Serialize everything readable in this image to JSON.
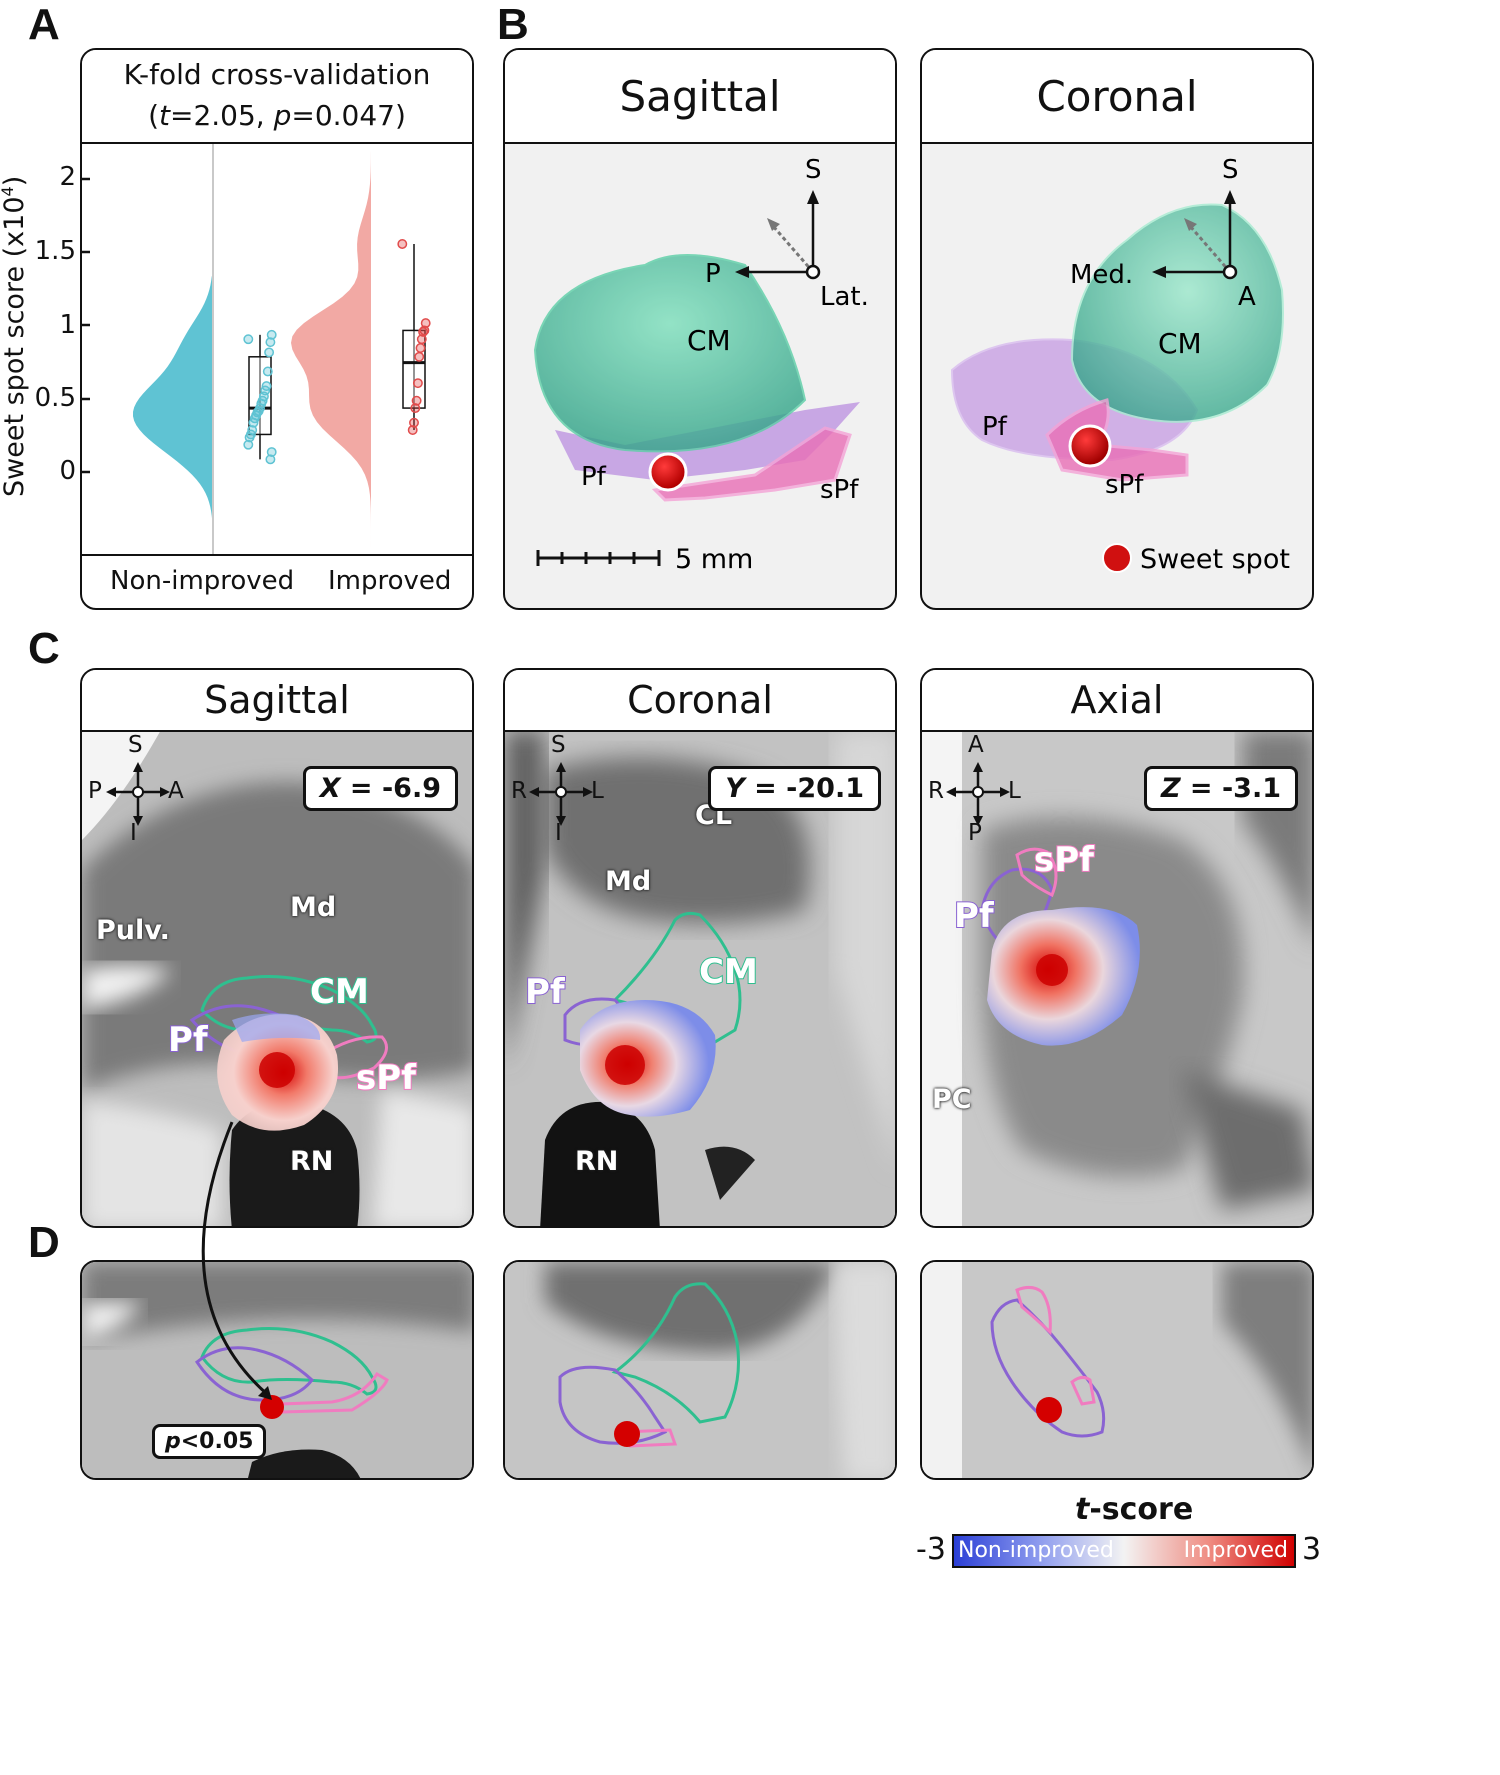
{
  "panels": {
    "A": "A",
    "B": "B",
    "C": "C",
    "D": "D"
  },
  "panelA": {
    "title": "K-fold cross-validation",
    "stats": {
      "open": "(",
      "t_sym": "t",
      "t_val": "=2.05, ",
      "p_sym": "p",
      "p_val": "=0.047)"
    },
    "ylabel": "Sweet spot score (x10",
    "ylabel_sup": "4",
    "ylabel_close": ")",
    "yticks": [
      "2",
      "1.5",
      "1",
      "0.5",
      "0"
    ],
    "categories": [
      "Non-improved",
      "Improved"
    ]
  },
  "chart_data": {
    "type": "box",
    "title": "K-fold cross-validation",
    "subtitle": "(t=2.05, p=0.047)",
    "ylabel": "Sweet spot score (x10^4)",
    "ylim": [
      -0.5,
      2.2
    ],
    "categories": [
      "Non-improved",
      "Improved"
    ],
    "series": [
      {
        "name": "Non-improved",
        "color": "#5fc3d3",
        "box": {
          "q1": 0.27,
          "median": 0.45,
          "q3": 0.8,
          "whisker_low": 0.1,
          "whisker_high": 0.95
        },
        "points": [
          0.92,
          0.95,
          0.9,
          0.83,
          0.7,
          0.6,
          0.57,
          0.53,
          0.5,
          0.48,
          0.45,
          0.43,
          0.42,
          0.4,
          0.38,
          0.35,
          0.3,
          0.27,
          0.25,
          0.2,
          0.15,
          0.1
        ]
      },
      {
        "name": "Improved",
        "color": "#e14b4b",
        "box": {
          "q1": 0.45,
          "median": 0.76,
          "q3": 0.98,
          "whisker_low": 0.3,
          "whisker_high": 1.57
        },
        "points": [
          1.57,
          1.03,
          0.98,
          0.97,
          0.92,
          0.86,
          0.8,
          0.62,
          0.5,
          0.45,
          0.35,
          0.3
        ]
      }
    ]
  },
  "panelB": {
    "sagittal": {
      "title": "Sagittal",
      "labels": {
        "cm": "CM",
        "pf": "Pf",
        "spf": "sPf"
      },
      "axes": {
        "s": "S",
        "p": "P",
        "lat": "Lat."
      },
      "scale": "5 mm"
    },
    "coronal": {
      "title": "Coronal",
      "labels": {
        "cm": "CM",
        "pf": "Pf",
        "spf": "sPf"
      },
      "axes": {
        "s": "S",
        "med": "Med.",
        "a": "A"
      },
      "legend": "Sweet spot"
    }
  },
  "panelC": {
    "sagittal": {
      "title": "Sagittal",
      "coord_var": "X",
      "coord_val": " = -6.9",
      "dirs": {
        "s": "S",
        "i": "I",
        "p": "P",
        "a": "A"
      },
      "labels": {
        "pulv": "Pulv.",
        "md": "Md",
        "cm": "CM",
        "pf": "Pf",
        "spf": "sPf",
        "rn": "RN"
      }
    },
    "coronal": {
      "title": "Coronal",
      "coord_var": "Y",
      "coord_val": " = -20.1",
      "dirs": {
        "s": "S",
        "i": "I",
        "r": "R",
        "l": "L"
      },
      "labels": {
        "cl": "CL",
        "md": "Md",
        "cm": "CM",
        "pf": "Pf",
        "rn": "RN"
      }
    },
    "axial": {
      "title": "Axial",
      "coord_var": "Z",
      "coord_val": " = -3.1",
      "dirs": {
        "a": "A",
        "p": "P",
        "r": "R",
        "l": "L"
      },
      "labels": {
        "spf": "sPf",
        "pf": "Pf",
        "pc": "PC"
      }
    }
  },
  "panelD": {
    "pval_sym": "p",
    "pval_rest": "<0.05"
  },
  "colorbar": {
    "title_sym": "t",
    "title_rest": "-score",
    "min": "-3",
    "max": "3",
    "left": "Non-improved",
    "right": "Improved"
  },
  "colors": {
    "cm": "#2fbf8f",
    "pf": "#8a63d2",
    "spf": "#f07cc0",
    "sweet": "#d01010",
    "teal": "#5fc3d3",
    "pink": "#f2a9a4"
  }
}
